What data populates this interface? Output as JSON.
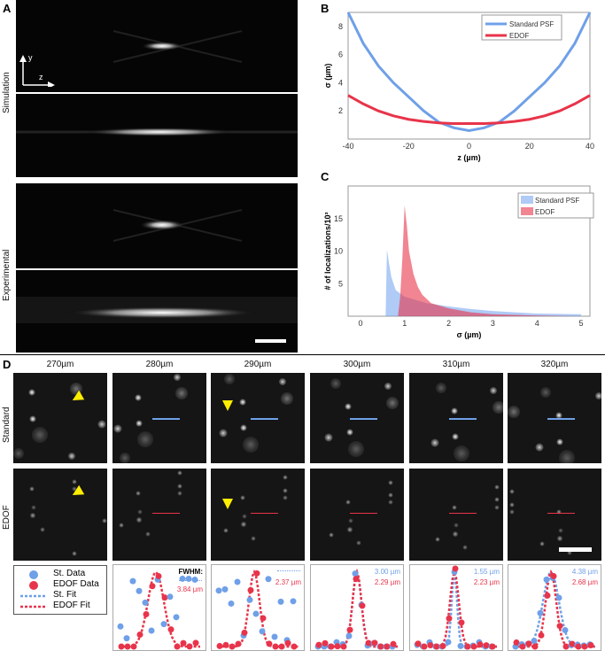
{
  "panel_labels": {
    "a": "A",
    "b": "B",
    "c": "C",
    "d": "D"
  },
  "panel_a": {
    "row_labels": [
      "Simulation",
      "Experimental"
    ],
    "axis_y": "y",
    "axis_z": "z"
  },
  "chart_data": [
    {
      "type": "line",
      "panel": "B",
      "xlabel": "z (µm)",
      "ylabel": "σ (µm)",
      "xlim": [
        -40,
        40
      ],
      "ylim": [
        0,
        9
      ],
      "xticks": [
        -40,
        -20,
        0,
        20,
        40
      ],
      "yticks": [
        2,
        4,
        6,
        8
      ],
      "legend_position": "top-right",
      "series": [
        {
          "name": "Standard PSF",
          "color": "#6fa0e8",
          "x": [
            -40,
            -35,
            -30,
            -25,
            -20,
            -15,
            -10,
            -5,
            0,
            5,
            10,
            15,
            20,
            25,
            30,
            35,
            40
          ],
          "y": [
            9,
            6.8,
            5.2,
            4.0,
            3.0,
            2.0,
            1.2,
            0.8,
            0.6,
            0.8,
            1.2,
            2.0,
            3.0,
            4.0,
            5.2,
            6.8,
            9
          ]
        },
        {
          "name": "EDOF",
          "color": "#e8344a",
          "x": [
            -40,
            -35,
            -30,
            -25,
            -20,
            -15,
            -10,
            -5,
            0,
            5,
            10,
            15,
            20,
            25,
            30,
            35,
            40
          ],
          "y": [
            3.1,
            2.5,
            2.0,
            1.65,
            1.4,
            1.25,
            1.15,
            1.1,
            1.1,
            1.1,
            1.15,
            1.25,
            1.4,
            1.65,
            2.0,
            2.5,
            3.1
          ]
        }
      ]
    },
    {
      "type": "area",
      "panel": "C",
      "xlabel": "σ (µm)",
      "ylabel": "# of localizations/10³",
      "xlim": [
        -0.28,
        5.2
      ],
      "ylim": [
        0,
        20
      ],
      "xticks": [
        0,
        1,
        2,
        3,
        4,
        5
      ],
      "yticks": [
        5,
        10,
        15
      ],
      "legend_position": "top-right",
      "series": [
        {
          "name": "Standard PSF",
          "color": "#7aa8f0",
          "x": [
            0.57,
            0.6,
            0.65,
            0.7,
            0.8,
            1.0,
            1.5,
            2.0,
            2.5,
            3.0,
            3.5,
            4.0,
            4.5,
            5.0
          ],
          "y": [
            0,
            10.2,
            8,
            6,
            4,
            3,
            2,
            1.5,
            1.1,
            0.8,
            0.6,
            0.4,
            0.35,
            0.3
          ]
        },
        {
          "name": "EDOF",
          "color": "#e8344a",
          "x": [
            0.85,
            0.9,
            0.95,
            1.0,
            1.05,
            1.1,
            1.2,
            1.3,
            1.4,
            1.6,
            2.0,
            2.5,
            3.0,
            4.0,
            5.0
          ],
          "y": [
            0,
            3,
            9,
            17,
            14,
            10,
            6.5,
            4.5,
            3.3,
            2,
            1.2,
            0.6,
            0.3,
            0.1,
            0
          ]
        }
      ]
    }
  ],
  "panel_d": {
    "columns": [
      "270µm",
      "280µm",
      "290µm",
      "300µm",
      "310µm",
      "320µm"
    ],
    "row_labels": [
      "Standard",
      "EDOF"
    ],
    "legend": [
      "St. Data",
      "EDOF Data",
      "St. Fit",
      "EDOF Fit"
    ],
    "fwhm_label": "FWHM:",
    "fwhm": [
      {
        "st": "",
        "edof": "3.84 µm"
      },
      {
        "st": "",
        "edof": "2.37 µm"
      },
      {
        "st": "3.00 µm",
        "edof": "2.29 µm"
      },
      {
        "st": "1.55 µm",
        "edof": "2.23 µm"
      },
      {
        "st": "4.38 µm",
        "edof": "2.68 µm"
      }
    ],
    "colors": {
      "st": "#6fa0e8",
      "edof": "#e8344a",
      "arrow": "#ffee00"
    }
  }
}
